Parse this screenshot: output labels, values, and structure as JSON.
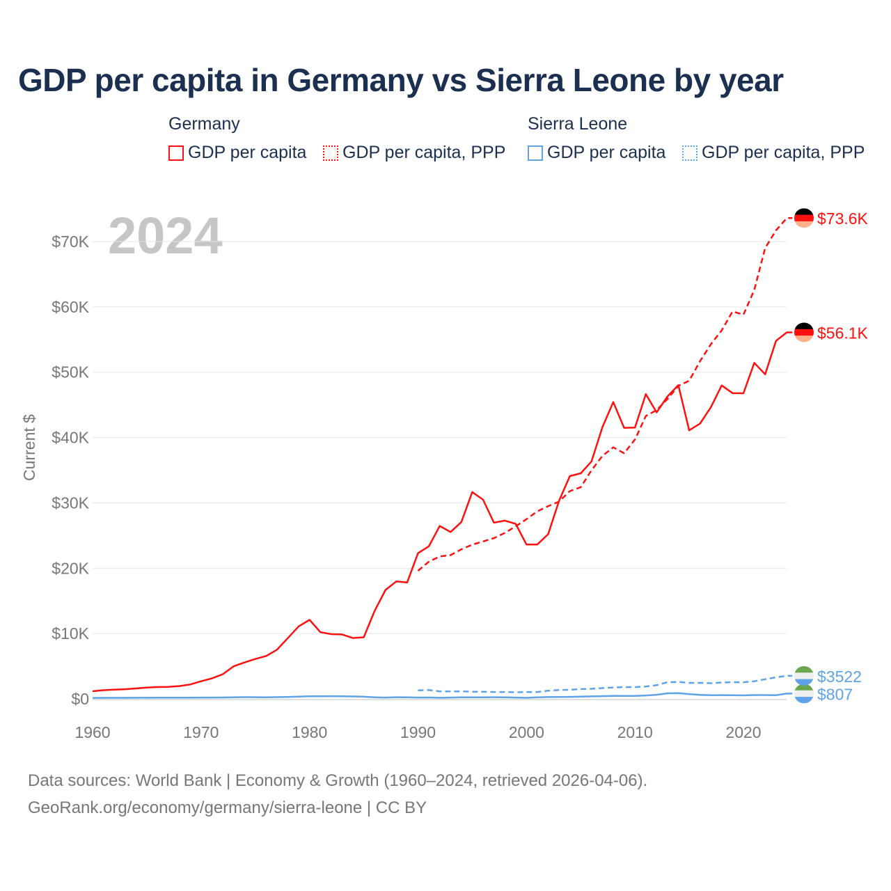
{
  "title": "GDP per capita in Germany vs Sierra Leone by year",
  "legend": {
    "groups": [
      {
        "name": "Germany",
        "items": [
          "GDP per capita",
          "GDP per capita, PPP"
        ]
      },
      {
        "name": "Sierra Leone",
        "items": [
          "GDP per capita",
          "GDP per capita, PPP"
        ]
      }
    ]
  },
  "year_label": "2024",
  "footer": {
    "line1": "Data sources: World Bank | Economy & Growth (1960–2024, retrieved 2026-04-06).",
    "line2": "GeoRank.org/economy/germany/sierra-leone | CC BY"
  },
  "chart_data": {
    "type": "line",
    "title": "GDP per capita in Germany vs Sierra Leone by year",
    "ylabel": "Current $",
    "xlabel": "",
    "xlim": [
      1960,
      2024
    ],
    "ylim": [
      0,
      70000
    ],
    "x_ticks": [
      "1960",
      "1970",
      "1980",
      "1990",
      "2000",
      "2010",
      "2020"
    ],
    "y_ticks": [
      "$0",
      "$10K",
      "$20K",
      "$30K",
      "$40K",
      "$50K",
      "$60K",
      "$70K"
    ],
    "y_tick_values": [
      0,
      10000,
      20000,
      30000,
      40000,
      50000,
      60000,
      70000
    ],
    "grid": true,
    "series": [
      {
        "name": "Germany GDP per capita",
        "color": "#ff1010",
        "dash": false,
        "start": 1960,
        "end_label": "$56.1K",
        "values": [
          1167,
          1333,
          1416,
          1476,
          1598,
          1726,
          1807,
          1836,
          1965,
          2204,
          2697,
          3130,
          3767,
          4989,
          5567,
          6106,
          6562,
          7524,
          9299,
          11099,
          12093,
          10209,
          9914,
          9864,
          9313,
          9430,
          13464,
          16677,
          17977,
          17810,
          22304,
          23357,
          26463,
          25538,
          27078,
          31658,
          30485,
          26964,
          27289,
          26796,
          23636,
          23628,
          25205,
          30311,
          34107,
          34520,
          36353,
          41587,
          45427,
          41486,
          41532,
          46645,
          43858,
          46299,
          48024,
          41103,
          42136,
          44653,
          47973,
          46794,
          46773,
          51426,
          49686,
          54800,
          56100
        ]
      },
      {
        "name": "Germany GDP per capita, PPP",
        "color": "#ff1010",
        "dash": true,
        "start": 1990,
        "end_label": "$73.6K",
        "values": [
          19600,
          21000,
          21800,
          22000,
          22900,
          23600,
          24100,
          24600,
          25400,
          26400,
          27500,
          28700,
          29500,
          30200,
          31800,
          32400,
          35000,
          37200,
          38500,
          37600,
          39700,
          43300,
          44200,
          45900,
          47900,
          48700,
          51700,
          54300,
          56400,
          59300,
          58800,
          62600,
          69000,
          71700,
          73600
        ]
      },
      {
        "name": "Sierra Leone GDP per capita",
        "color": "#5ea3e8",
        "dash": false,
        "start": 1960,
        "end_label": "$807",
        "values": [
          150,
          155,
          160,
          165,
          170,
          175,
          180,
          185,
          180,
          190,
          200,
          200,
          210,
          240,
          270,
          260,
          240,
          270,
          300,
          350,
          400,
          410,
          420,
          390,
          370,
          330,
          250,
          200,
          260,
          250,
          200,
          210,
          170,
          200,
          230,
          250,
          250,
          260,
          240,
          200,
          160,
          250,
          280,
          300,
          310,
          340,
          380,
          420,
          470,
          450,
          450,
          520,
          630,
          850,
          880,
          740,
          620,
          560,
          580,
          570,
          530,
          590,
          590,
          560,
          807
        ]
      },
      {
        "name": "Sierra Leone GDP per capita, PPP",
        "color": "#5ea3e8",
        "dash": true,
        "start": 1990,
        "end_label": "$3522",
        "values": [
          1300,
          1350,
          1150,
          1150,
          1150,
          1100,
          1100,
          1050,
          1050,
          1000,
          1050,
          1050,
          1250,
          1350,
          1400,
          1500,
          1550,
          1650,
          1750,
          1800,
          1800,
          1900,
          2100,
          2550,
          2600,
          2450,
          2450,
          2400,
          2500,
          2550,
          2550,
          2700,
          3000,
          3300,
          3522
        ]
      }
    ]
  }
}
